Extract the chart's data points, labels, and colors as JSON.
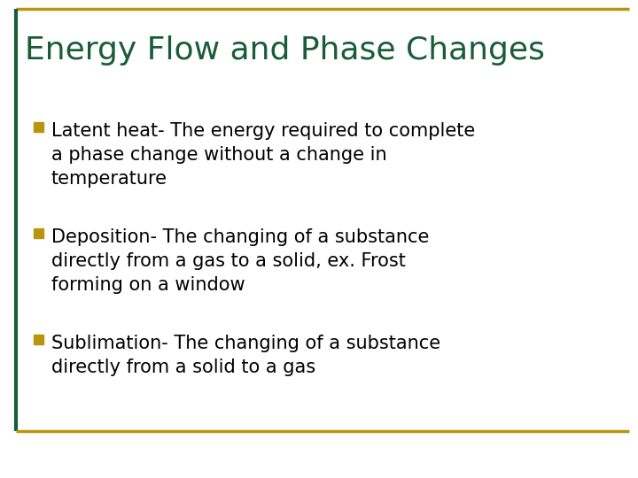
{
  "title": "Energy Flow and Phase Changes",
  "title_color": "#1a5c38",
  "title_fontsize": 26,
  "background_color": "#ffffff",
  "border_left_color": "#1a5c38",
  "border_top_color": "#b8960c",
  "border_bottom_color": "#b8960c",
  "bullet_color": "#b8960c",
  "text_color": "#000000",
  "bullet_points": [
    "Latent heat- The energy required to complete\na phase change without a change in\ntemperature",
    "Deposition- The changing of a substance\ndirectly from a gas to a solid, ex. Frost\nforming on a window",
    "Sublimation- The changing of a substance\ndirectly from a solid to a gas"
  ],
  "text_fontsize": 15,
  "font_family": "DejaVu Sans"
}
